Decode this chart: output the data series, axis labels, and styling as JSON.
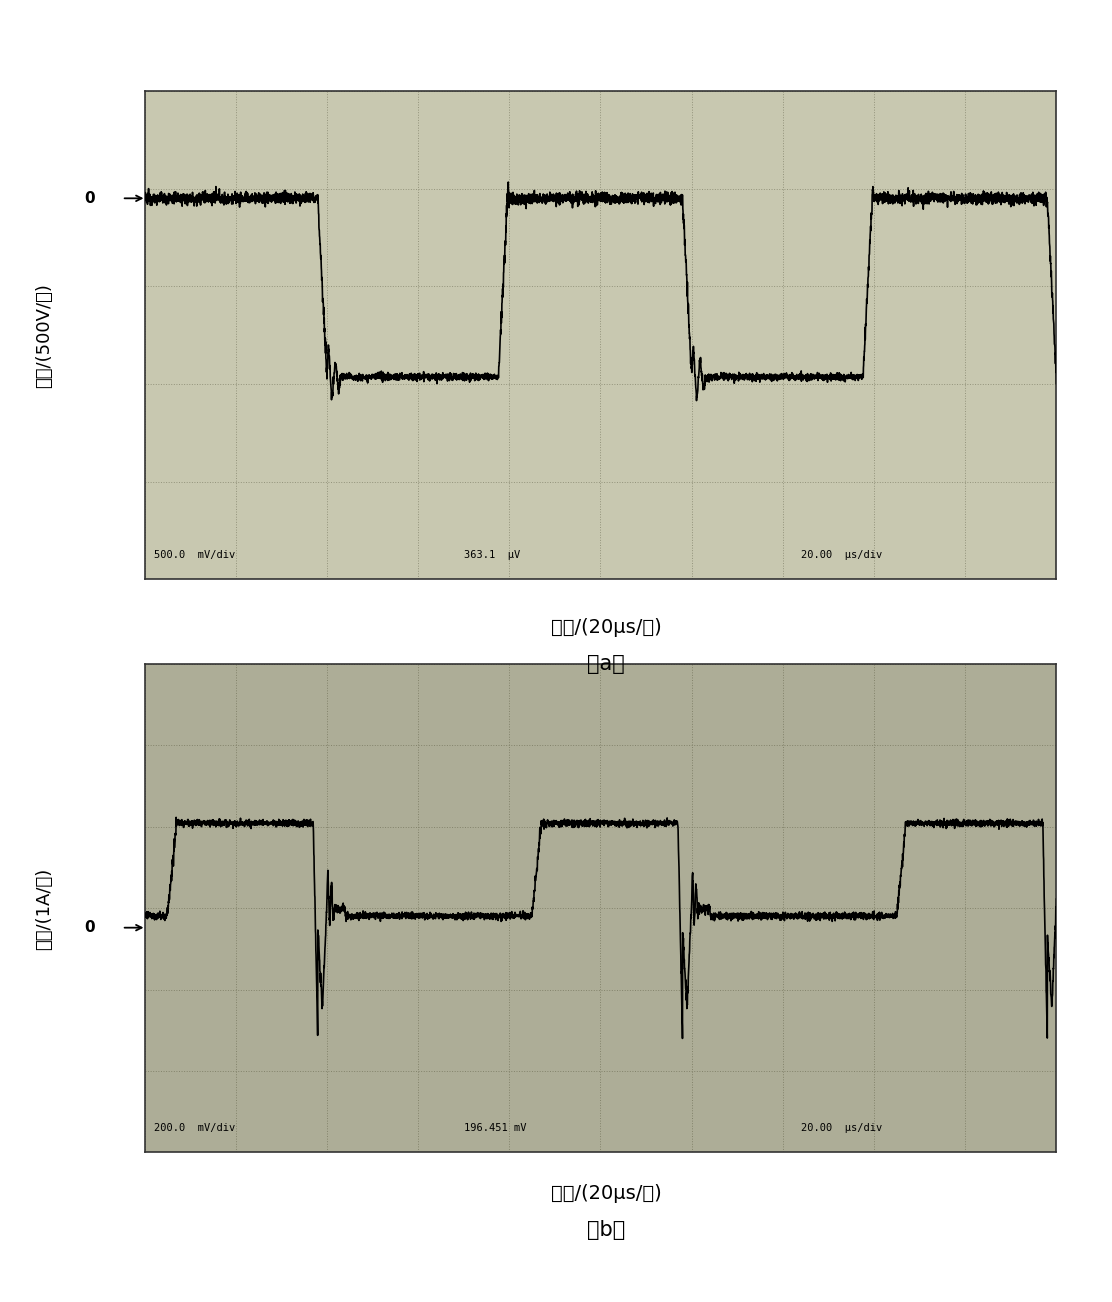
{
  "fig_width": 11.12,
  "fig_height": 13.02,
  "fig_dpi": 100,
  "panel_a": {
    "bg_color": "#c8c8b0",
    "grid_color": "#909078",
    "signal_color": "#000000",
    "ylabel": "电压/(500V/格)",
    "xlabel": "时间/(20μs/格)",
    "caption": "（a）",
    "bottom_text_left": "500.0  mV/div",
    "bottom_text_mid": "363.1  μV",
    "bottom_text_right": "20.00  μs/div",
    "zero_label": "0",
    "num_hdivs": 10,
    "num_vdivs": 5,
    "ylim": [
      -3.2,
      0.9
    ],
    "xlim": [
      0,
      10
    ],
    "zero_y": 0.0
  },
  "panel_b": {
    "bg_color": "#adad97",
    "grid_color": "#808068",
    "signal_color": "#000000",
    "ylabel": "电流/(1A/格)",
    "xlabel": "时间/(20μs/格)",
    "caption": "（b）",
    "bottom_text_left": "200.0  mV/div",
    "bottom_text_mid": "196.451 mV",
    "bottom_text_right": "20.00  μs/div",
    "zero_label": "0",
    "num_hdivs": 10,
    "num_vdivs": 6,
    "ylim": [
      -2.5,
      2.5
    ],
    "xlim": [
      0,
      10
    ],
    "zero_y": -0.2
  }
}
